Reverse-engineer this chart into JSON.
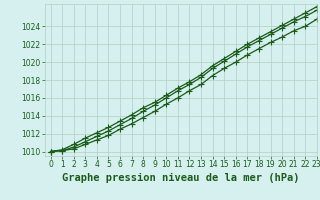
{
  "title": "Graphe pression niveau de la mer (hPa)",
  "background_color": "#d6f0f0",
  "grid_color": "#b0cfc0",
  "line_color": "#1a5c1a",
  "xlim": [
    -0.5,
    23
  ],
  "ylim": [
    1009.5,
    1026.5
  ],
  "xticks": [
    0,
    1,
    2,
    3,
    4,
    5,
    6,
    7,
    8,
    9,
    10,
    11,
    12,
    13,
    14,
    15,
    16,
    17,
    18,
    19,
    20,
    21,
    22,
    23
  ],
  "yticks": [
    1010,
    1012,
    1014,
    1016,
    1018,
    1020,
    1022,
    1024
  ],
  "line1_y": [
    1010.0,
    1010.1,
    1010.3,
    1010.8,
    1011.3,
    1011.8,
    1012.5,
    1013.1,
    1013.8,
    1014.5,
    1015.3,
    1016.0,
    1016.8,
    1017.5,
    1018.5,
    1019.3,
    1020.0,
    1020.8,
    1021.5,
    1022.2,
    1022.8,
    1023.5,
    1024.0,
    1024.8
  ],
  "line2_y": [
    1010.0,
    1010.1,
    1010.5,
    1011.1,
    1011.7,
    1012.3,
    1013.0,
    1013.7,
    1014.5,
    1015.2,
    1016.0,
    1016.8,
    1017.5,
    1018.3,
    1019.3,
    1020.1,
    1020.9,
    1021.7,
    1022.4,
    1023.1,
    1023.8,
    1024.5,
    1025.1,
    1025.8
  ],
  "line3_y": [
    1010.0,
    1010.2,
    1010.8,
    1011.5,
    1012.1,
    1012.7,
    1013.4,
    1014.1,
    1014.9,
    1015.5,
    1016.3,
    1017.1,
    1017.8,
    1018.6,
    1019.6,
    1020.4,
    1021.2,
    1022.0,
    1022.7,
    1023.4,
    1024.1,
    1024.8,
    1025.5,
    1026.2
  ],
  "marker": "+",
  "marker_size": 4,
  "linewidth": 0.9,
  "title_fontsize": 7.5,
  "tick_fontsize": 5.5
}
